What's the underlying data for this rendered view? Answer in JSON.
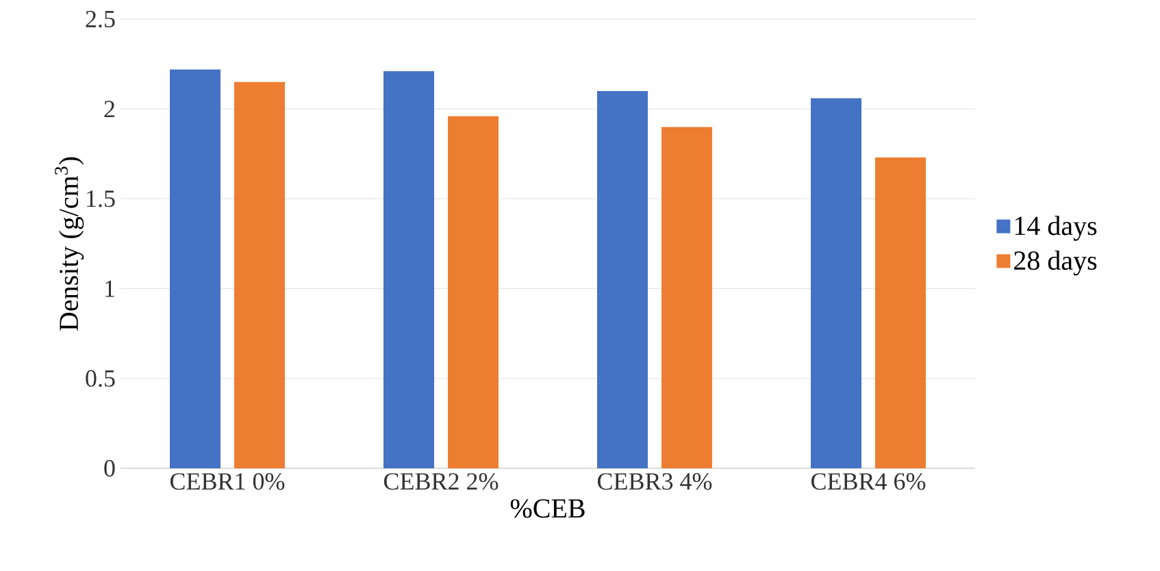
{
  "chart_data": {
    "type": "bar",
    "xlabel": "%CEB",
    "ylabel": "Density (g/cm$^{3}$)",
    "categories": [
      "CEBR1 0%",
      "CEBR2 2%",
      "CEBR3 4%",
      "CEBR4 6%"
    ],
    "series": [
      {
        "name": "14 days",
        "color": "#4472c4",
        "values": [
          2.22,
          2.21,
          2.1,
          2.06
        ]
      },
      {
        "name": "28 days",
        "color": "#ed7d31",
        "values": [
          2.15,
          1.96,
          1.9,
          1.73
        ]
      }
    ],
    "ylim": [
      0,
      2.5
    ],
    "yticks": [
      0,
      0.5,
      1,
      1.5,
      2,
      2.5
    ],
    "grid": "y",
    "legend": "right"
  }
}
